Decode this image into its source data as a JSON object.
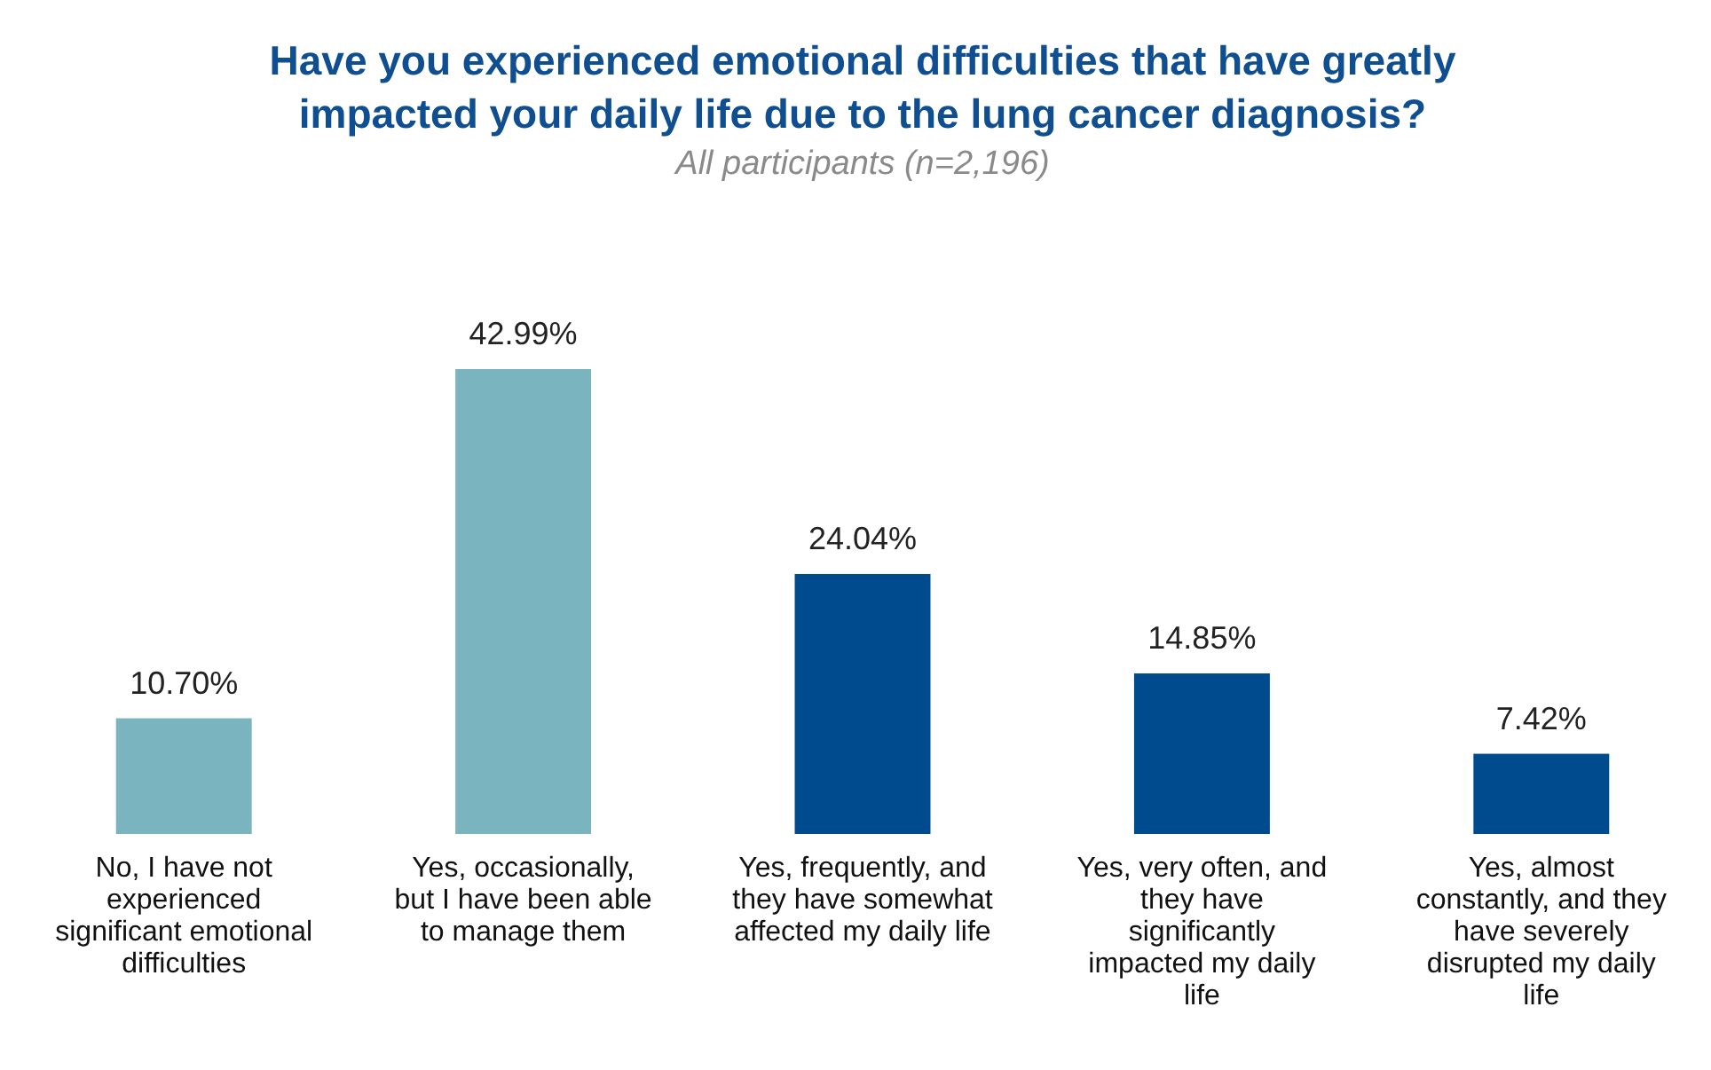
{
  "chart_data": {
    "type": "bar",
    "title": "Have you experienced emotional difficulties that have greatly impacted your daily life due to the lung cancer diagnosis?",
    "subtitle": "All participants (n=2,196)",
    "categories": [
      "No, I have not experienced significant emotional difficulties",
      "Yes, occasionally, but I have been able to manage them",
      "Yes, frequently, and they have somewhat affected my daily life",
      "Yes, very often, and they have significantly impacted my daily life",
      "Yes, almost constantly, and they have severely disrupted my daily life"
    ],
    "values": [
      10.7,
      42.99,
      24.04,
      14.85,
      7.42
    ],
    "colors": [
      "#7ab4bf",
      "#7ab4bf",
      "#004b8d",
      "#004b8d",
      "#004b8d"
    ],
    "value_labels": [
      "10.70%",
      "42.99%",
      "24.04%",
      "14.85%",
      "7.42%"
    ]
  }
}
